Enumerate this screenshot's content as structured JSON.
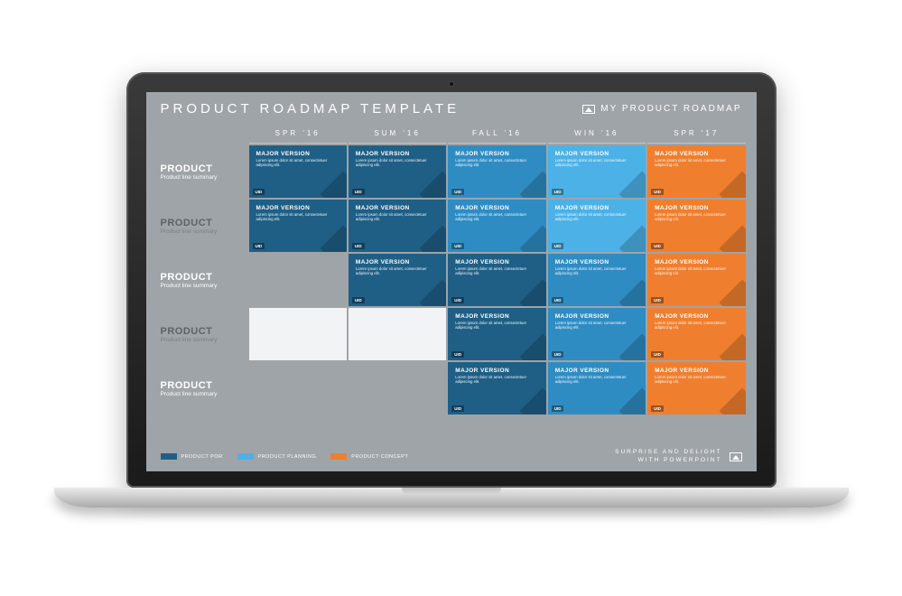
{
  "header": {
    "title": "PRODUCT ROADMAP TEMPLATE",
    "brand": "MY PRODUCT  ROADMAP"
  },
  "columns": [
    "SPR '16",
    "SUM '16",
    "FALL '16",
    "WIN '16",
    "SPR '17"
  ],
  "row_label": {
    "name": "PRODUCT",
    "sub": "Product line summary"
  },
  "card_defaults": {
    "title": "MAJOR VERSION",
    "desc": "Lorem ipsum dolor sit amet, consectetuer adipiscing elit.",
    "uid": "UID"
  },
  "colors": {
    "dark_blue": "#1f5f86",
    "mid_blue": "#2f8cc3",
    "light_blue": "#4cb1e6",
    "orange": "#ef7f2f",
    "bg": "#9fa4a8",
    "alt_row": "#f2f3f4"
  },
  "grid": [
    [
      "dark_blue",
      "dark_blue",
      "mid_blue",
      "light_blue",
      "orange"
    ],
    [
      "dark_blue",
      "dark_blue",
      "mid_blue",
      "light_blue",
      "orange"
    ],
    [
      null,
      "dark_blue",
      "dark_blue",
      "mid_blue",
      "orange"
    ],
    [
      null,
      null,
      "dark_blue",
      "mid_blue",
      "orange"
    ],
    [
      null,
      null,
      "dark_blue",
      "mid_blue",
      "orange"
    ]
  ],
  "row_alt": [
    false,
    true,
    false,
    true,
    false
  ],
  "legend": [
    {
      "label": "PRODUCT POR",
      "color": "#1f5f86"
    },
    {
      "label": "PRODUCT PLANNING",
      "color": "#4cb1e6"
    },
    {
      "label": "PRODUCT CONCEPT",
      "color": "#ef7f2f"
    }
  ],
  "tagline": {
    "line1": "SURPRISE AND DELIGHT",
    "line2": "WITH POWERPOINT"
  }
}
